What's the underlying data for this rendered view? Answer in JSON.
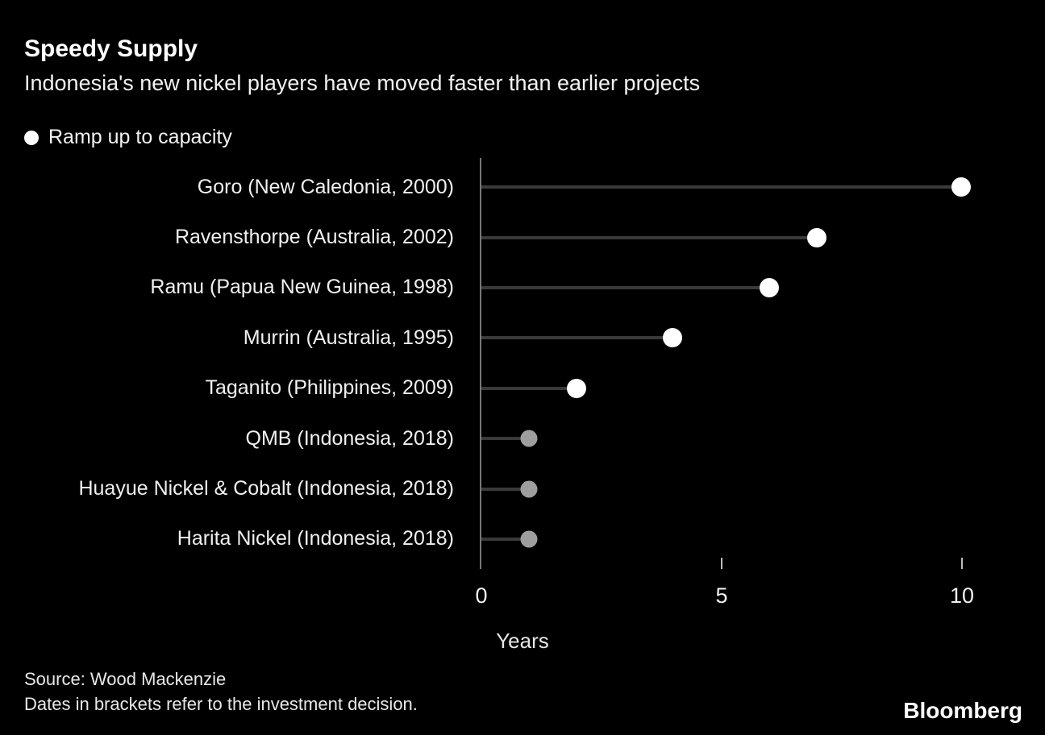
{
  "header": {
    "title": "Speedy Supply",
    "subtitle": "Indonesia's new nickel players have moved faster than earlier projects"
  },
  "legend": {
    "label": "Ramp up to capacity",
    "marker_color": "#ffffff"
  },
  "chart_data": {
    "type": "scatter",
    "subtype": "horizontal-lollipop",
    "title": "Speedy Supply",
    "subtitle": "Indonesia's new nickel players have moved faster than earlier projects",
    "series_label": "Ramp up to capacity",
    "categories": [
      "Goro (New Caledonia, 2000)",
      "Ravensthorpe (Australia, 2002)",
      "Ramu (Papua New Guinea, 1998)",
      "Murrin (Australia, 1995)",
      "Taganito (Philippines, 2009)",
      "QMB (Indonesia, 2018)",
      "Huayue Nickel & Cobalt (Indonesia, 2018)",
      "Harita Nickel (Indonesia, 2018)"
    ],
    "values": [
      10,
      7,
      6,
      4,
      2,
      1,
      1,
      1
    ],
    "point_colors": [
      "#ffffff",
      "#ffffff",
      "#ffffff",
      "#ffffff",
      "#ffffff",
      "#9e9e9e",
      "#9e9e9e",
      "#9e9e9e"
    ],
    "point_sizes": [
      24,
      24,
      24,
      24,
      24,
      21,
      21,
      21
    ],
    "xlabel": "Years",
    "x_ticks": [
      0,
      5,
      10
    ],
    "xlim": [
      0,
      11.2
    ],
    "grid": false,
    "legend_position": "top-left",
    "stem_color": "#3a3a3a",
    "axis_color": "#777777",
    "background": "#000000"
  },
  "footer": {
    "source": "Source: Wood Mackenzie",
    "note": "Dates in brackets refer to the investment decision.",
    "brand": "Bloomberg"
  }
}
